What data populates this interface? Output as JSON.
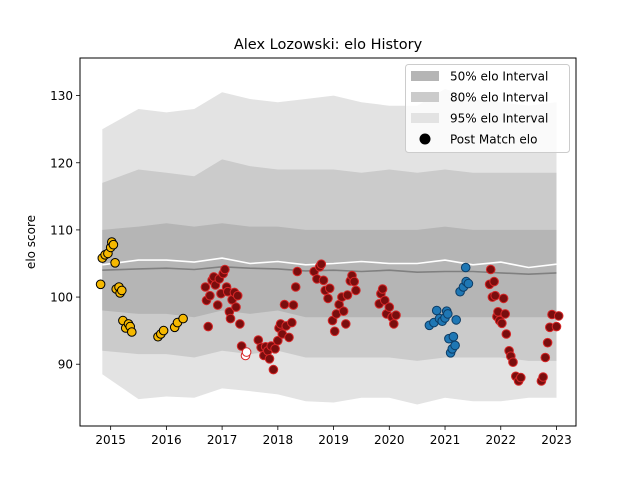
{
  "chart_data": {
    "type": "scatter",
    "title": "Alex Lozowski: elo History",
    "xlabel": "",
    "ylabel": "elo score",
    "xlim": [
      2014.45,
      2023.35
    ],
    "ylim": [
      80.8,
      135.6
    ],
    "x_ticks": [
      2015,
      2016,
      2017,
      2018,
      2019,
      2020,
      2021,
      2022,
      2023
    ],
    "y_ticks": [
      90,
      100,
      110,
      120,
      130
    ],
    "grid": false,
    "legend_position": "top-right",
    "colors": {
      "band95": "#e3e3e3",
      "band80": "#cbcbcb",
      "band50": "#b5b5b5",
      "median_line": "#808080",
      "upper_line": "#ffffff",
      "gold": "#f5b800",
      "crimson": "#7a0e0e",
      "red_edge": "#d62728",
      "blue": "#1f77b4"
    },
    "legend": [
      {
        "label": "50% elo Interval",
        "kind": "patch",
        "color": "#b5b5b5"
      },
      {
        "label": "80% elo Interval",
        "kind": "patch",
        "color": "#cbcbcb"
      },
      {
        "label": "95% elo Interval",
        "kind": "patch",
        "color": "#e3e3e3"
      },
      {
        "label": "Post Match elo",
        "kind": "marker",
        "color": "#000000"
      }
    ],
    "bands": {
      "x": [
        2014.85,
        2015.5,
        2016.0,
        2016.5,
        2017.0,
        2017.5,
        2018.0,
        2018.5,
        2019.0,
        2019.5,
        2020.0,
        2020.5,
        2021.0,
        2021.5,
        2022.0,
        2022.5,
        2023.0
      ],
      "p95_low": [
        88.5,
        84.8,
        85.2,
        85.0,
        86.4,
        86.0,
        85.5,
        84.5,
        84.3,
        85.0,
        85.0,
        84.0,
        85.0,
        84.5,
        84.5,
        85.0,
        85.0
      ],
      "p80_low": [
        92.0,
        91.5,
        91.5,
        91.0,
        92.0,
        91.5,
        92.0,
        91.0,
        91.0,
        91.0,
        91.0,
        90.5,
        91.0,
        91.0,
        91.0,
        90.5,
        90.5
      ],
      "p50_low": [
        98.0,
        97.5,
        97.5,
        97.0,
        98.0,
        97.5,
        98.0,
        97.0,
        97.0,
        97.0,
        97.0,
        97.0,
        97.0,
        97.0,
        97.0,
        97.0,
        97.0
      ],
      "median": [
        104.0,
        104.2,
        104.3,
        104.1,
        104.5,
        104.3,
        104.2,
        103.9,
        104.0,
        103.8,
        104.0,
        103.7,
        103.8,
        103.8,
        103.6,
        103.4,
        103.6
      ],
      "p50_high": [
        110.0,
        110.5,
        111.0,
        110.5,
        111.0,
        110.5,
        110.5,
        110.0,
        110.0,
        110.0,
        110.0,
        110.0,
        110.5,
        110.0,
        110.0,
        110.0,
        110.0
      ],
      "p80_high": [
        117.0,
        119.0,
        118.5,
        118.0,
        120.5,
        119.5,
        119.0,
        119.0,
        119.0,
        118.5,
        119.0,
        118.5,
        119.0,
        118.5,
        118.5,
        118.5,
        118.5
      ],
      "p95_high": [
        125.0,
        128.0,
        127.5,
        128.0,
        130.5,
        129.5,
        129.0,
        129.5,
        130.0,
        129.0,
        128.5,
        128.5,
        131.0,
        129.5,
        129.0,
        128.5,
        129.0
      ],
      "upper_line": [
        104.8,
        105.5,
        105.5,
        105.2,
        105.8,
        105.0,
        105.3,
        104.8,
        105.0,
        105.3,
        105.0,
        105.0,
        105.5,
        104.8,
        105.2,
        104.4,
        104.9
      ]
    },
    "series": [
      {
        "name": "",
        "fill": "#f5b800",
        "edge": "#000000",
        "points": [
          [
            2014.82,
            101.9
          ],
          [
            2014.85,
            105.8
          ],
          [
            2014.9,
            106.3
          ],
          [
            2014.95,
            106.5
          ],
          [
            2015.0,
            107.4
          ],
          [
            2015.02,
            108.2
          ],
          [
            2015.05,
            107.8
          ],
          [
            2015.08,
            105.1
          ],
          [
            2015.1,
            101.2
          ],
          [
            2015.15,
            101.5
          ],
          [
            2015.17,
            100.6
          ],
          [
            2015.2,
            101.0
          ],
          [
            2015.22,
            96.5
          ],
          [
            2015.27,
            95.4
          ],
          [
            2015.32,
            96.0
          ],
          [
            2015.35,
            95.6
          ],
          [
            2015.38,
            94.8
          ],
          [
            2015.85,
            94.1
          ],
          [
            2015.9,
            94.5
          ],
          [
            2015.95,
            95.0
          ],
          [
            2016.15,
            95.5
          ],
          [
            2016.2,
            96.2
          ],
          [
            2016.3,
            96.8
          ]
        ]
      },
      {
        "name": "",
        "fill": "#7a0e0e",
        "edge": "#d62728",
        "points": [
          [
            2016.7,
            101.5
          ],
          [
            2016.72,
            99.5
          ],
          [
            2016.75,
            95.6
          ],
          [
            2016.78,
            100.2
          ],
          [
            2016.82,
            102.5
          ],
          [
            2016.85,
            103.0
          ],
          [
            2016.88,
            101.8
          ],
          [
            2016.92,
            98.8
          ],
          [
            2016.95,
            102.7
          ],
          [
            2016.98,
            100.5
          ],
          [
            2017.02,
            103.5
          ],
          [
            2017.05,
            104.1
          ],
          [
            2017.08,
            101.5
          ],
          [
            2017.1,
            100.8
          ],
          [
            2017.13,
            97.8
          ],
          [
            2017.15,
            96.8
          ],
          [
            2017.18,
            99.6
          ],
          [
            2017.22,
            100.7
          ],
          [
            2017.25,
            98.5
          ],
          [
            2017.28,
            100.2
          ],
          [
            2017.32,
            96.0
          ],
          [
            2017.35,
            92.7
          ],
          [
            2017.65,
            93.6
          ],
          [
            2017.7,
            92.5
          ],
          [
            2017.75,
            91.3
          ],
          [
            2017.78,
            92.6
          ],
          [
            2017.82,
            92.0
          ],
          [
            2017.85,
            90.8
          ],
          [
            2017.88,
            92.7
          ],
          [
            2017.92,
            89.2
          ],
          [
            2017.95,
            92.3
          ],
          [
            2018.0,
            93.5
          ],
          [
            2018.02,
            95.4
          ],
          [
            2018.05,
            96.0
          ],
          [
            2018.08,
            94.5
          ],
          [
            2018.12,
            98.9
          ],
          [
            2018.15,
            95.7
          ],
          [
            2018.2,
            94.0
          ],
          [
            2018.25,
            96.2
          ],
          [
            2018.28,
            98.8
          ],
          [
            2018.32,
            101.5
          ],
          [
            2018.35,
            103.8
          ],
          [
            2018.65,
            103.8
          ],
          [
            2018.7,
            102.7
          ],
          [
            2018.75,
            104.5
          ],
          [
            2018.78,
            104.9
          ],
          [
            2018.82,
            102.5
          ],
          [
            2018.85,
            101.0
          ],
          [
            2018.9,
            99.8
          ],
          [
            2018.93,
            101.3
          ],
          [
            2018.98,
            96.5
          ],
          [
            2019.02,
            94.9
          ],
          [
            2019.05,
            97.5
          ],
          [
            2019.1,
            98.9
          ],
          [
            2019.15,
            100.0
          ],
          [
            2019.18,
            97.9
          ],
          [
            2019.22,
            96.0
          ],
          [
            2019.25,
            100.3
          ],
          [
            2019.3,
            102.4
          ],
          [
            2019.33,
            103.2
          ],
          [
            2019.37,
            102.3
          ],
          [
            2019.4,
            101.0
          ],
          [
            2019.82,
            99.0
          ],
          [
            2019.85,
            100.5
          ],
          [
            2019.88,
            101.2
          ],
          [
            2019.92,
            99.5
          ],
          [
            2019.95,
            97.5
          ],
          [
            2020.0,
            98.5
          ],
          [
            2020.05,
            97.0
          ],
          [
            2020.08,
            96.0
          ],
          [
            2020.12,
            97.3
          ],
          [
            2021.8,
            101.9
          ],
          [
            2021.82,
            104.1
          ],
          [
            2021.85,
            100.0
          ],
          [
            2021.88,
            102.3
          ],
          [
            2021.9,
            100.2
          ],
          [
            2021.93,
            97.1
          ],
          [
            2021.95,
            97.8
          ],
          [
            2021.98,
            96.5
          ],
          [
            2022.02,
            96.1
          ],
          [
            2022.05,
            99.8
          ],
          [
            2022.08,
            97.5
          ],
          [
            2022.1,
            94.5
          ],
          [
            2022.15,
            92.0
          ],
          [
            2022.18,
            91.2
          ],
          [
            2022.22,
            90.3
          ],
          [
            2022.27,
            88.2
          ],
          [
            2022.32,
            87.5
          ],
          [
            2022.36,
            88.0
          ],
          [
            2022.73,
            87.5
          ],
          [
            2022.76,
            88.1
          ],
          [
            2022.8,
            91.0
          ],
          [
            2022.84,
            93.2
          ],
          [
            2022.88,
            95.5
          ],
          [
            2022.92,
            97.4
          ],
          [
            2023.0,
            95.6
          ],
          [
            2023.04,
            97.2
          ]
        ]
      },
      {
        "name": "",
        "fill": "#ffffff",
        "edge": "#d62728",
        "points": [
          [
            2017.42,
            91.3
          ],
          [
            2017.44,
            91.8
          ]
        ]
      },
      {
        "name": "",
        "fill": "#1f77b4",
        "edge": "#0d3d66",
        "points": [
          [
            2020.72,
            95.8
          ],
          [
            2020.8,
            96.2
          ],
          [
            2020.85,
            98.0
          ],
          [
            2020.9,
            96.8
          ],
          [
            2020.95,
            96.4
          ],
          [
            2021.0,
            96.9
          ],
          [
            2021.03,
            97.9
          ],
          [
            2021.05,
            97.5
          ],
          [
            2021.07,
            93.8
          ],
          [
            2021.1,
            91.7
          ],
          [
            2021.13,
            92.3
          ],
          [
            2021.15,
            94.1
          ],
          [
            2021.18,
            92.8
          ],
          [
            2021.2,
            96.6
          ],
          [
            2021.27,
            100.8
          ],
          [
            2021.33,
            101.5
          ],
          [
            2021.38,
            102.3
          ],
          [
            2021.42,
            102.0
          ],
          [
            2021.37,
            104.4
          ]
        ]
      }
    ]
  }
}
